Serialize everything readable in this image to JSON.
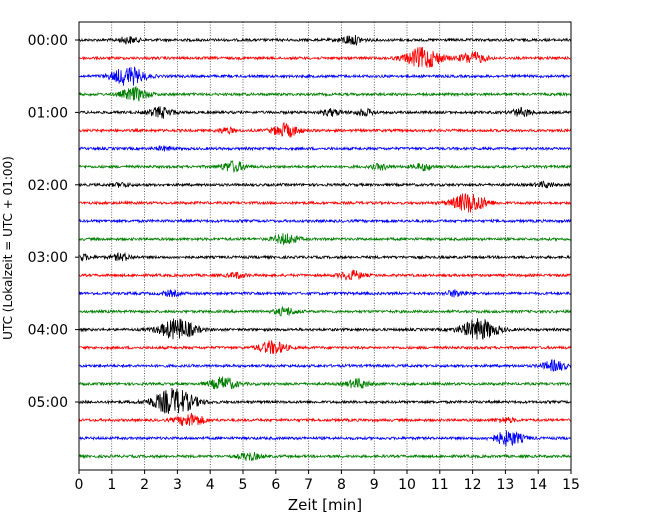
{
  "chart_data": {
    "type": "line",
    "title": "",
    "xlabel": "Zeit  [min]",
    "ylabel": "UTC (Lokalzeit = UTC + 01:00)",
    "xlim": [
      0,
      15
    ],
    "x_ticks": [
      "0",
      "1",
      "2",
      "3",
      "4",
      "5",
      "6",
      "7",
      "8",
      "9",
      "10",
      "11",
      "12",
      "13",
      "14",
      "15"
    ],
    "y_tick_labels": [
      "00:00",
      "01:00",
      "02:00",
      "03:00",
      "04:00",
      "05:00"
    ],
    "grid": "vertical-dotted",
    "trace_colors": [
      "#000000",
      "#ff0000",
      "#0000ff",
      "#008000"
    ],
    "traces_per_hour": 4,
    "minutes_per_trace": 15,
    "traces": [
      {
        "time": "00:00",
        "color": "#000000",
        "bursts": [
          [
            1.5,
            0.5
          ],
          [
            8.3,
            0.7
          ]
        ]
      },
      {
        "time": "00:15",
        "color": "#ff0000",
        "bursts": [
          [
            10.5,
            1.6
          ],
          [
            12.0,
            0.9
          ]
        ]
      },
      {
        "time": "00:30",
        "color": "#0000ff",
        "bursts": [
          [
            1.5,
            1.4
          ]
        ]
      },
      {
        "time": "00:45",
        "color": "#008000",
        "bursts": [
          [
            1.7,
            1.0
          ]
        ]
      },
      {
        "time": "01:00",
        "color": "#000000",
        "bursts": [
          [
            2.5,
            0.8
          ],
          [
            7.7,
            0.5
          ],
          [
            8.7,
            0.5
          ],
          [
            13.5,
            0.6
          ]
        ]
      },
      {
        "time": "01:15",
        "color": "#ff0000",
        "bursts": [
          [
            4.5,
            0.4
          ],
          [
            6.3,
            1.0
          ]
        ]
      },
      {
        "time": "01:30",
        "color": "#0000ff",
        "bursts": [
          [
            2.6,
            0.3
          ]
        ]
      },
      {
        "time": "01:45",
        "color": "#008000",
        "bursts": [
          [
            4.7,
            0.8
          ],
          [
            9.2,
            0.4
          ],
          [
            10.5,
            0.5
          ]
        ]
      },
      {
        "time": "02:00",
        "color": "#000000",
        "bursts": [
          [
            1.3,
            0.3
          ],
          [
            14.2,
            0.4
          ]
        ]
      },
      {
        "time": "02:15",
        "color": "#ff0000",
        "bursts": [
          [
            11.9,
            1.5
          ]
        ]
      },
      {
        "time": "02:30",
        "color": "#0000ff",
        "bursts": []
      },
      {
        "time": "02:45",
        "color": "#008000",
        "bursts": [
          [
            6.3,
            0.8
          ]
        ]
      },
      {
        "time": "03:00",
        "color": "#000000",
        "bursts": [
          [
            0.1,
            0.4
          ],
          [
            1.3,
            0.5
          ]
        ]
      },
      {
        "time": "03:15",
        "color": "#ff0000",
        "bursts": [
          [
            4.8,
            0.4
          ],
          [
            8.3,
            0.7
          ]
        ]
      },
      {
        "time": "03:30",
        "color": "#0000ff",
        "bursts": [
          [
            2.8,
            0.4
          ],
          [
            11.5,
            0.5
          ]
        ]
      },
      {
        "time": "03:45",
        "color": "#008000",
        "bursts": [
          [
            6.3,
            0.6
          ]
        ]
      },
      {
        "time": "04:00",
        "color": "#000000",
        "bursts": [
          [
            3.0,
            1.6
          ],
          [
            12.2,
            1.6
          ]
        ]
      },
      {
        "time": "04:15",
        "color": "#ff0000",
        "bursts": [
          [
            5.9,
            1.0
          ]
        ]
      },
      {
        "time": "04:30",
        "color": "#0000ff",
        "bursts": [
          [
            14.5,
            0.8
          ]
        ]
      },
      {
        "time": "04:45",
        "color": "#008000",
        "bursts": [
          [
            4.4,
            1.0
          ],
          [
            8.5,
            0.7
          ]
        ]
      },
      {
        "time": "05:00",
        "color": "#000000",
        "bursts": [
          [
            2.9,
            2.0
          ]
        ]
      },
      {
        "time": "05:15",
        "color": "#ff0000",
        "bursts": [
          [
            3.4,
            1.0
          ],
          [
            13.0,
            0.4
          ]
        ]
      },
      {
        "time": "05:30",
        "color": "#0000ff",
        "bursts": [
          [
            13.1,
            1.1
          ]
        ]
      },
      {
        "time": "05:45",
        "color": "#008000",
        "bursts": [
          [
            5.2,
            0.6
          ]
        ]
      }
    ]
  }
}
